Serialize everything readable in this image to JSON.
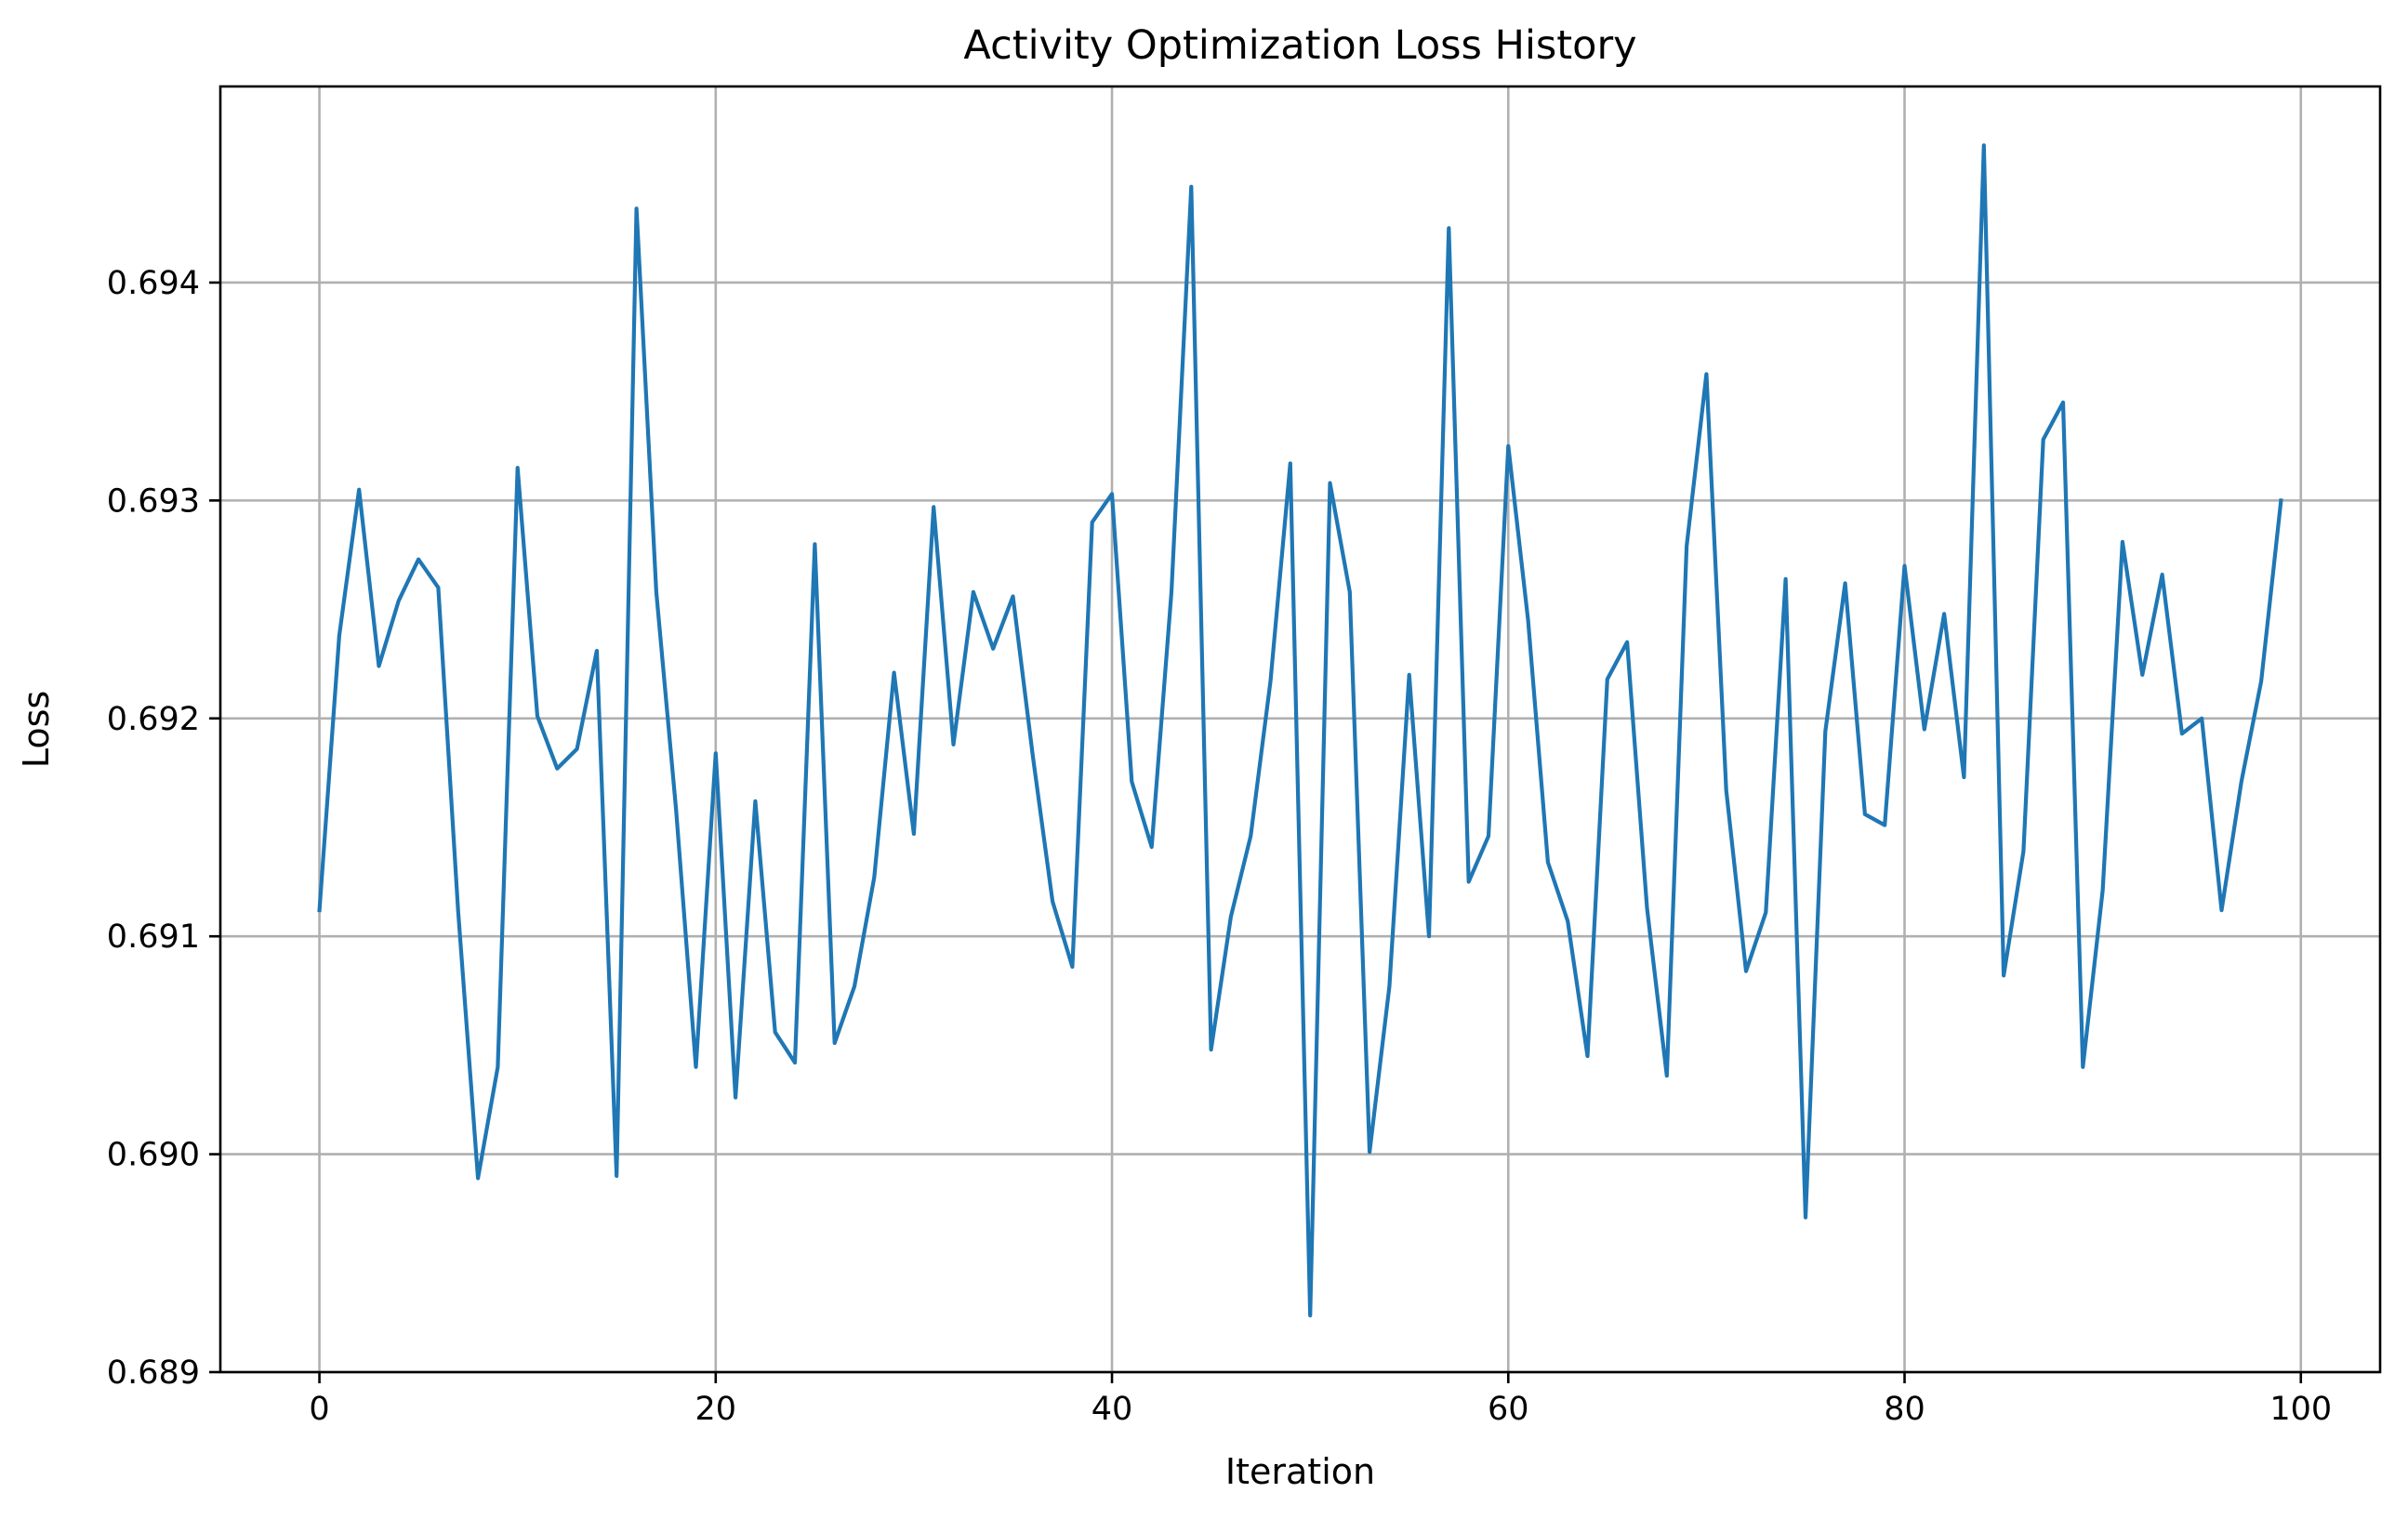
{
  "chart_data": {
    "type": "line",
    "title": "Activity Optimization Loss History",
    "xlabel": "Iteration",
    "ylabel": "Loss",
    "xlim": [
      -5,
      104
    ],
    "ylim": [
      0.689,
      0.6949
    ],
    "grid": true,
    "x_ticks": [
      {
        "value": 0,
        "label": "0"
      },
      {
        "value": 20,
        "label": "20"
      },
      {
        "value": 40,
        "label": "40"
      },
      {
        "value": 60,
        "label": "60"
      },
      {
        "value": 80,
        "label": "80"
      },
      {
        "value": 100,
        "label": "100"
      }
    ],
    "y_ticks": [
      {
        "value": 0.689,
        "label": "0.689"
      },
      {
        "value": 0.69,
        "label": "0.690"
      },
      {
        "value": 0.691,
        "label": "0.691"
      },
      {
        "value": 0.692,
        "label": "0.692"
      },
      {
        "value": 0.693,
        "label": "0.693"
      },
      {
        "value": 0.694,
        "label": "0.694"
      }
    ],
    "series": [
      {
        "color": "#1f77b4",
        "x": [
          0,
          1,
          2,
          3,
          4,
          5,
          6,
          7,
          8,
          9,
          10,
          11,
          12,
          13,
          14,
          15,
          16,
          17,
          18,
          19,
          20,
          21,
          22,
          23,
          24,
          25,
          26,
          27,
          28,
          29,
          30,
          31,
          32,
          33,
          34,
          35,
          36,
          37,
          38,
          39,
          40,
          41,
          42,
          43,
          44,
          45,
          46,
          47,
          48,
          49,
          50,
          51,
          52,
          53,
          54,
          55,
          56,
          57,
          58,
          59,
          60,
          61,
          62,
          63,
          64,
          65,
          66,
          67,
          68,
          69,
          70,
          71,
          72,
          73,
          74,
          75,
          76,
          77,
          78,
          79,
          80,
          81,
          82,
          83,
          84,
          85,
          86,
          87,
          88,
          89,
          90,
          91,
          92,
          93,
          94,
          95,
          96,
          97,
          98,
          99
        ],
        "values": [
          0.69112,
          0.69238,
          0.69305,
          0.69224,
          0.69254,
          0.69273,
          0.6926,
          0.69112,
          0.68989,
          0.6904,
          0.69315,
          0.69201,
          0.69177,
          0.69186,
          0.69231,
          0.6899,
          0.69434,
          0.69258,
          0.69158,
          0.6904,
          0.69184,
          0.69026,
          0.69162,
          0.69056,
          0.69042,
          0.6928,
          0.69051,
          0.69077,
          0.69127,
          0.69221,
          0.69147,
          0.69297,
          0.69188,
          0.69258,
          0.69232,
          0.69256,
          0.69183,
          0.69116,
          0.69086,
          0.6929,
          0.69303,
          0.69171,
          0.69141,
          0.69258,
          0.69444,
          0.69048,
          0.69109,
          0.69146,
          0.69217,
          0.69317,
          0.68926,
          0.69308,
          0.69258,
          0.69001,
          0.69077,
          0.6922,
          0.691,
          0.69425,
          0.69125,
          0.69146,
          0.69325,
          0.69245,
          0.69134,
          0.69107,
          0.69045,
          0.69218,
          0.69235,
          0.69113,
          0.69036,
          0.69279,
          0.69358,
          0.69167,
          0.69084,
          0.69111,
          0.69264,
          0.68971,
          0.69194,
          0.69262,
          0.69156,
          0.69151,
          0.6927,
          0.69195,
          0.69248,
          0.69173,
          0.69463,
          0.69082,
          0.69139,
          0.69328,
          0.69345,
          0.6904,
          0.69121,
          0.69281,
          0.6922,
          0.69266,
          0.69193,
          0.692,
          0.69112,
          0.69171,
          0.69217,
          0.693
        ]
      }
    ]
  }
}
